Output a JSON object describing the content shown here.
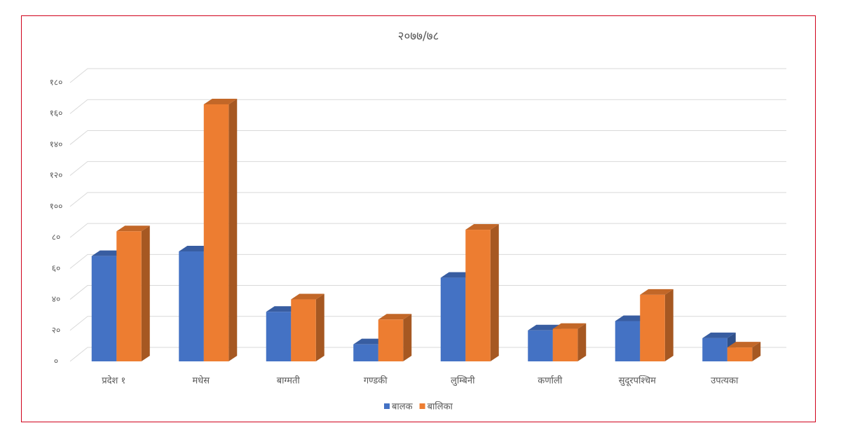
{
  "chart_data": {
    "type": "bar3d",
    "title": "२०७७/७८",
    "categories": [
      "प्रदेश १",
      "मधेस",
      "बाग्मती",
      "गण्डकी",
      "लुम्बिनी",
      "कर्णाली",
      "सुदूरपश्चिम",
      "उपत्यका"
    ],
    "series": [
      {
        "name": "बालक",
        "color": "#4472c4",
        "values": [
          68,
          71,
          32,
          11,
          54,
          20,
          26,
          15
        ]
      },
      {
        "name": "बालिका",
        "color": "#ed7d31",
        "values": [
          84,
          166,
          40,
          27,
          85,
          21,
          43,
          9
        ]
      }
    ],
    "ylim": [
      0,
      180
    ],
    "yticks": [
      {
        "value": 0,
        "label": "०"
      },
      {
        "value": 20,
        "label": "२०"
      },
      {
        "value": 40,
        "label": "४०"
      },
      {
        "value": 60,
        "label": "६०"
      },
      {
        "value": 80,
        "label": "८०"
      },
      {
        "value": 100,
        "label": "१००"
      },
      {
        "value": 120,
        "label": "१२०"
      },
      {
        "value": 140,
        "label": "१४०"
      },
      {
        "value": 160,
        "label": "१६०"
      },
      {
        "value": 180,
        "label": "१८०"
      }
    ],
    "grid": true,
    "legend": "bottom"
  }
}
